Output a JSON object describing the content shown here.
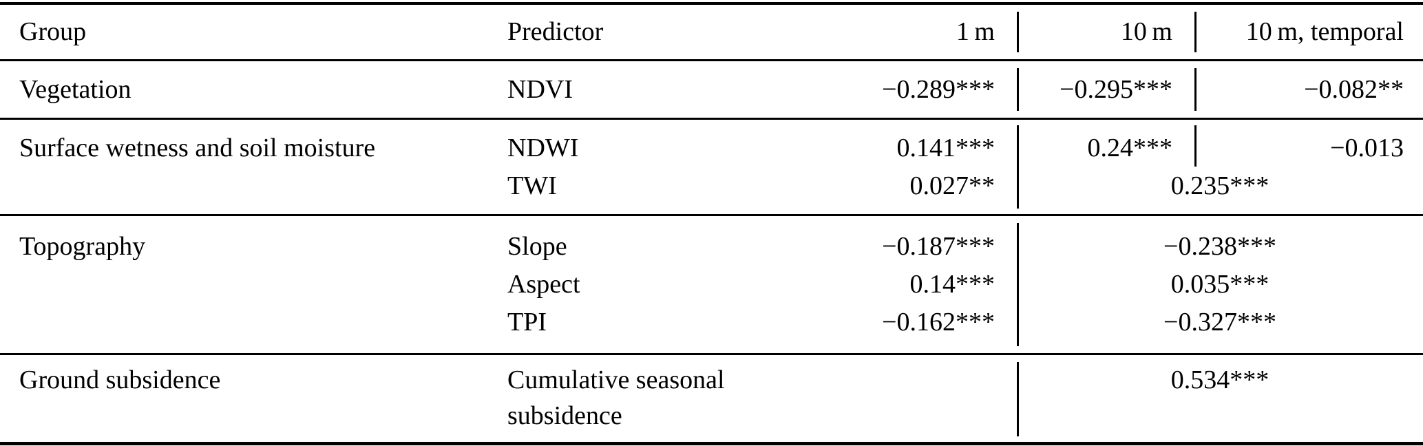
{
  "header": {
    "group": "Group",
    "predictor": "Predictor",
    "col_1m": "1 m",
    "col_10m": "10 m",
    "col_10mt": "10 m, temporal"
  },
  "groups": [
    {
      "group": "Vegetation",
      "rows": [
        {
          "predictor": "NDVI",
          "v1m": "−0.289***",
          "v10m": "−0.295***",
          "v10mt": "−0.082**"
        }
      ]
    },
    {
      "group": "Surface wetness and soil moisture",
      "rows": [
        {
          "predictor": "NDWI",
          "v1m": "0.141***",
          "v10m": "0.24***",
          "v10mt": "−0.013"
        },
        {
          "predictor": "TWI",
          "v1m": "0.027**",
          "merged": "0.235***"
        }
      ]
    },
    {
      "group": "Topography",
      "rows": [
        {
          "predictor": "Slope",
          "v1m": "−0.187***",
          "merged": "−0.238***"
        },
        {
          "predictor": "Aspect",
          "v1m": "0.14***",
          "merged": "0.035***"
        },
        {
          "predictor": "TPI",
          "v1m": "−0.162***",
          "merged": "−0.327***"
        }
      ]
    },
    {
      "group": "Ground subsidence",
      "rows": [
        {
          "predictor": "Cumulative seasonal subsidence",
          "v1m": "",
          "merged": "0.534***"
        }
      ]
    }
  ]
}
